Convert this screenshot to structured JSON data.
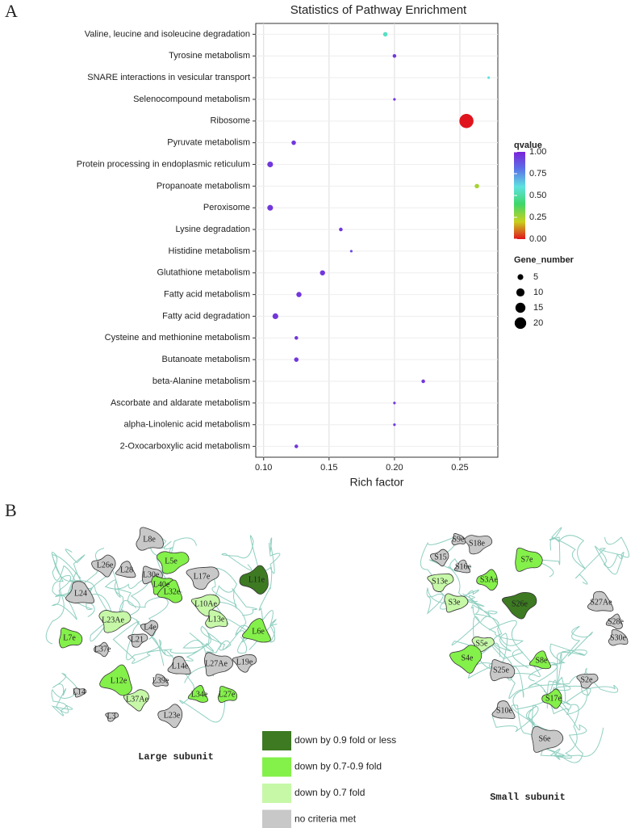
{
  "panels": [
    "A",
    "B"
  ],
  "chart_data": {
    "type": "bubble",
    "title": "Statistics of Pathway Enrichment",
    "x_label": "Rich factor",
    "categories": [
      "Valine, leucine and isoleucine degradation",
      "Tyrosine metabolism",
      "SNARE interactions in vesicular transport",
      "Selenocompound metabolism",
      "Ribosome",
      "Pyruvate metabolism",
      "Protein processing in endoplasmic reticulum",
      "Propanoate metabolism",
      "Peroxisome",
      "Lysine degradation",
      "Histidine metabolism",
      "Glutathione metabolism",
      "Fatty acid metabolism",
      "Fatty acid degradation",
      "Cysteine and methionine metabolism",
      "Butanoate metabolism",
      "beta-Alanine metabolism",
      "Ascorbate and aldarate metabolism",
      "alpha-Linolenic acid metabolism",
      "2-Oxocarboxylic acid metabolism"
    ],
    "values": [
      0.193,
      0.2,
      0.272,
      0.2,
      0.255,
      0.123,
      0.105,
      0.263,
      0.105,
      0.159,
      0.167,
      0.145,
      0.127,
      0.109,
      0.125,
      0.125,
      0.222,
      0.2,
      0.2,
      0.125
    ],
    "gene_number": [
      3,
      2,
      1,
      1,
      30,
      3,
      5,
      3,
      5,
      2,
      1,
      4,
      4,
      5,
      2,
      3,
      2,
      1,
      1,
      2
    ],
    "qvalue": [
      0.55,
      0.95,
      0.6,
      0.95,
      0,
      0.95,
      0.95,
      0.25,
      0.95,
      0.95,
      0.9,
      0.95,
      0.95,
      0.95,
      0.95,
      0.95,
      0.95,
      0.95,
      0.95,
      0.95
    ],
    "xlim": [
      0.094,
      0.279
    ],
    "xticks": [
      {
        "value": 0.1,
        "label": "0.10"
      },
      0.15,
      {
        "value": 0.2,
        "label": "0.20"
      },
      0.25
    ],
    "grid": true,
    "color_title": "qvalue",
    "colorscale": [
      "#e0141c",
      "#c8d21e",
      "#3fd66a",
      "#5fe3e0",
      "#5b74e8",
      "#7a22d8"
    ],
    "color_lim": [
      0,
      1
    ],
    "color_ticks": [
      {
        "value": 0,
        "label": "0.00"
      },
      0.25,
      {
        "value": 0.5,
        "label": "0.50"
      },
      0.75,
      {
        "value": 1,
        "label": "1.00"
      }
    ],
    "size_title": "Gene_number",
    "size_ticks": [
      5,
      10,
      15,
      20
    ]
  },
  "diagram": {
    "legend": [
      {
        "label": "down by 0.9 fold or less",
        "color": "#3d7a22"
      },
      {
        "label": "down by 0.7-0.9 fold",
        "color": "#84f04a"
      },
      {
        "label": "down by 0.7 fold",
        "color": "#c6f8a8"
      },
      {
        "label": "no criteria met",
        "color": "#c8c8c8"
      }
    ],
    "large_subunit": {
      "title": "Large subunit",
      "proteins": [
        {
          "label": "L8e",
          "group": 3
        },
        {
          "label": "L5e",
          "group": 1
        },
        {
          "label": "L26e",
          "group": 3
        },
        {
          "label": "L28",
          "group": 3
        },
        {
          "label": "L30e",
          "group": 3
        },
        {
          "label": "L17e",
          "group": 3
        },
        {
          "label": "L11e",
          "group": 0
        },
        {
          "label": "L24",
          "group": 3
        },
        {
          "label": "L40e",
          "group": 1
        },
        {
          "label": "L10Ae",
          "group": 2
        },
        {
          "label": "L32e",
          "group": 1
        },
        {
          "label": "L13e",
          "group": 2
        },
        {
          "label": "L23Ae",
          "group": 2
        },
        {
          "label": "L4e",
          "group": 3
        },
        {
          "label": "L6e",
          "group": 1
        },
        {
          "label": "L7e",
          "group": 1
        },
        {
          "label": "L21",
          "group": 3
        },
        {
          "label": "L37e",
          "group": 3
        },
        {
          "label": "L14e",
          "group": 3
        },
        {
          "label": "L27Ae",
          "group": 3
        },
        {
          "label": "L19e",
          "group": 3
        },
        {
          "label": "L12e",
          "group": 1
        },
        {
          "label": "L39e",
          "group": 3
        },
        {
          "label": "L14",
          "group": 3
        },
        {
          "label": "L37Ae",
          "group": 2
        },
        {
          "label": "L34e",
          "group": 1
        },
        {
          "label": "L27e",
          "group": 1
        },
        {
          "label": "L3",
          "group": 3
        },
        {
          "label": "L23e",
          "group": 3
        }
      ]
    },
    "small_subunit": {
      "title": "Small subunit",
      "proteins": [
        {
          "label": "S9e",
          "group": 3
        },
        {
          "label": "S18e",
          "group": 3
        },
        {
          "label": "S15",
          "group": 3
        },
        {
          "label": "S16e",
          "group": 3
        },
        {
          "label": "S7e",
          "group": 1
        },
        {
          "label": "S13e",
          "group": 2
        },
        {
          "label": "S3Ae",
          "group": 1
        },
        {
          "label": "S27Ae",
          "group": 3
        },
        {
          "label": "S3e",
          "group": 2
        },
        {
          "label": "S26e",
          "group": 0
        },
        {
          "label": "S28e",
          "group": 3
        },
        {
          "label": "S30e",
          "group": 3
        },
        {
          "label": "S5e",
          "group": 2
        },
        {
          "label": "S4e",
          "group": 1
        },
        {
          "label": "S8e",
          "group": 1
        },
        {
          "label": "S25e",
          "group": 3
        },
        {
          "label": "S2e",
          "group": 3
        },
        {
          "label": "S17e",
          "group": 1
        },
        {
          "label": "S10e",
          "group": 3
        },
        {
          "label": "S6e",
          "group": 3
        }
      ]
    }
  }
}
